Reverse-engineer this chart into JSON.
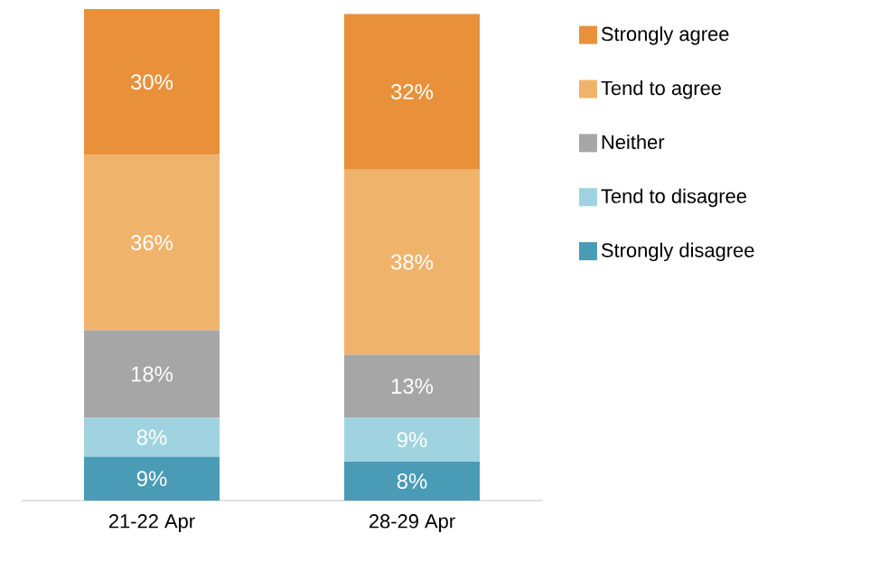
{
  "chart_data": {
    "type": "bar",
    "stacked": true,
    "legend": "right",
    "categories": [
      "21-22 Apr",
      "28-29 Apr"
    ],
    "series": [
      {
        "name": "Strongly disagree",
        "color": "#4a9bb5",
        "values": [
          9,
          8
        ],
        "value_labels": [
          "9%",
          "8%"
        ]
      },
      {
        "name": "Tend to disagree",
        "color": "#9fd3e0",
        "values": [
          8,
          9
        ],
        "value_labels": [
          "8%",
          "9%"
        ]
      },
      {
        "name": "Neither",
        "color": "#a6a6a6",
        "values": [
          18,
          13
        ],
        "value_labels": [
          "18%",
          "13%"
        ]
      },
      {
        "name": "Tend to agree",
        "color": "#f0b36c",
        "values": [
          36,
          38
        ],
        "value_labels": [
          "36%",
          "38%"
        ]
      },
      {
        "name": "Strongly agree",
        "color": "#e8913a",
        "values": [
          30,
          32
        ],
        "value_labels": [
          "30%",
          "32%"
        ]
      }
    ]
  }
}
